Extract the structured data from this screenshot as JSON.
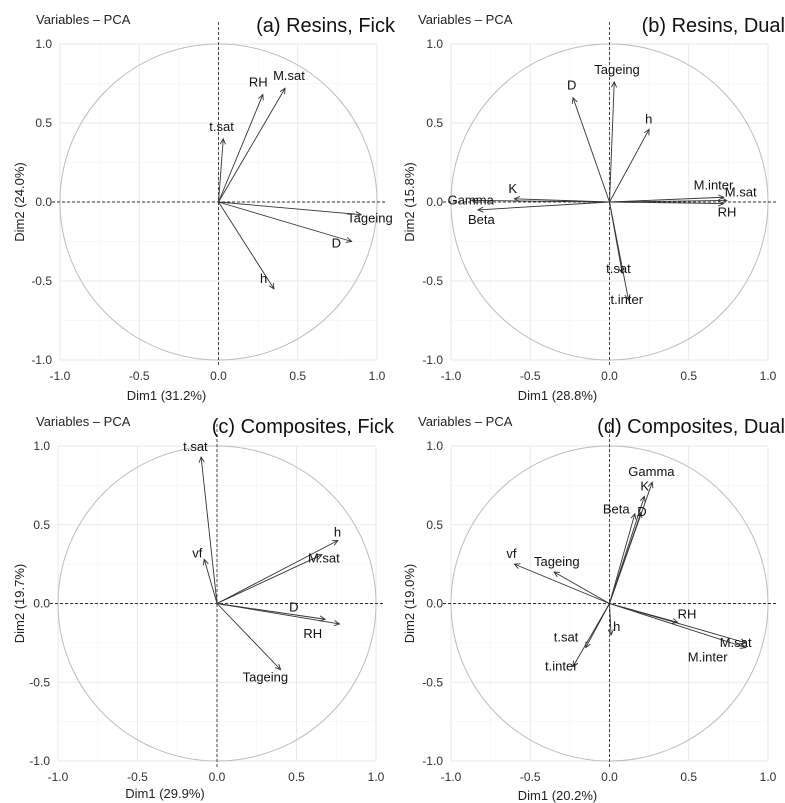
{
  "panels": [
    {
      "header": "Variables – PCA",
      "chart_data": {
        "type": "scatter",
        "title": "(a) Resins, Fick",
        "xlabel": "Dim1 (31.2%)",
        "ylabel": "Dim2 (24.0%)",
        "xlim": [
          -1.0,
          1.0
        ],
        "ylim": [
          -1.0,
          1.0
        ],
        "xticks": [
          "-1.0",
          "-0.5",
          "0.0",
          "0.5",
          "1.0"
        ],
        "yticks": [
          "-1.0",
          "-0.5",
          "0.0",
          "0.5",
          "1.0"
        ],
        "grid": true,
        "vectors": [
          {
            "label": "RH",
            "x": 0.28,
            "y": 0.68
          },
          {
            "label": "M.sat",
            "x": 0.42,
            "y": 0.72
          },
          {
            "label": "t.sat",
            "x": 0.03,
            "y": 0.4
          },
          {
            "label": "Tageing",
            "x": 0.9,
            "y": -0.08
          },
          {
            "label": "D",
            "x": 0.84,
            "y": -0.25
          },
          {
            "label": "h",
            "x": 0.35,
            "y": -0.55
          }
        ]
      }
    },
    {
      "header": "Variables – PCA",
      "chart_data": {
        "type": "scatter",
        "title": "(b) Resins, Dual",
        "xlabel": "Dim1 (28.8%)",
        "ylabel": "Dim2 (15.8%)",
        "xlim": [
          -1.0,
          1.0
        ],
        "ylim": [
          -1.0,
          1.0
        ],
        "xticks": [
          "-1.0",
          "-0.5",
          "0.0",
          "0.5",
          "1.0"
        ],
        "yticks": [
          "-1.0",
          "-0.5",
          "0.0",
          "0.5",
          "1.0"
        ],
        "grid": true,
        "vectors": [
          {
            "label": "Tageing",
            "x": 0.03,
            "y": 0.76
          },
          {
            "label": "D",
            "x": -0.23,
            "y": 0.66
          },
          {
            "label": "h",
            "x": 0.25,
            "y": 0.46
          },
          {
            "label": "K",
            "x": -0.6,
            "y": 0.02
          },
          {
            "label": "Gamma",
            "x": -0.87,
            "y": 0.01
          },
          {
            "label": "Beta",
            "x": -0.83,
            "y": -0.05
          },
          {
            "label": "M.inter",
            "x": 0.72,
            "y": 0.03
          },
          {
            "label": "M.sat",
            "x": 0.74,
            "y": 0.01
          },
          {
            "label": "RH",
            "x": 0.72,
            "y": -0.01
          },
          {
            "label": "t.sat",
            "x": 0.08,
            "y": -0.45
          },
          {
            "label": "t.inter",
            "x": 0.12,
            "y": -0.62
          }
        ]
      }
    },
    {
      "header": "Variables – PCA",
      "chart_data": {
        "type": "scatter",
        "title": "(c) Composites, Fick",
        "xlabel": "Dim1 (29.9%)",
        "ylabel": "Dim2 (19.7%)",
        "xlim": [
          -1.0,
          1.0
        ],
        "ylim": [
          -1.0,
          1.0
        ],
        "xticks": [
          "-1.0",
          "-0.5",
          "0.0",
          "0.5",
          "1.0"
        ],
        "yticks": [
          "-1.0",
          "-0.5",
          "0.0",
          "0.5",
          "1.0"
        ],
        "grid": true,
        "vectors": [
          {
            "label": "t.sat",
            "x": -0.1,
            "y": 0.93
          },
          {
            "label": "vf",
            "x": -0.08,
            "y": 0.28
          },
          {
            "label": "h",
            "x": 0.76,
            "y": 0.4
          },
          {
            "label": "M.sat",
            "x": 0.66,
            "y": 0.31
          },
          {
            "label": "D",
            "x": 0.68,
            "y": -0.1
          },
          {
            "label": "RH",
            "x": 0.77,
            "y": -0.13
          },
          {
            "label": "Tageing",
            "x": 0.4,
            "y": -0.42
          }
        ]
      }
    },
    {
      "header": "Variables – PCA",
      "chart_data": {
        "type": "scatter",
        "title": "(d) Composites, Dual",
        "xlabel": "Dim1 (20.2%)",
        "ylabel": "Dim2 (19.0%)",
        "xlim": [
          -1.0,
          1.0
        ],
        "ylim": [
          -1.0,
          1.0
        ],
        "xticks": [
          "-1.0",
          "-0.5",
          "0.0",
          "0.5",
          "1.0"
        ],
        "yticks": [
          "-1.0",
          "-0.5",
          "0.0",
          "0.5",
          "1.0"
        ],
        "grid": true,
        "vectors": [
          {
            "label": "Gamma",
            "x": 0.27,
            "y": 0.77
          },
          {
            "label": "K",
            "x": 0.22,
            "y": 0.68
          },
          {
            "label": "D",
            "x": 0.2,
            "y": 0.58
          },
          {
            "label": "Beta",
            "x": 0.16,
            "y": 0.57
          },
          {
            "label": "vf",
            "x": -0.6,
            "y": 0.25
          },
          {
            "label": "Tageing",
            "x": -0.35,
            "y": 0.2
          },
          {
            "label": "RH",
            "x": 0.43,
            "y": -0.12
          },
          {
            "label": "M.sat",
            "x": 0.86,
            "y": -0.25
          },
          {
            "label": "M.inter",
            "x": 0.86,
            "y": -0.28
          },
          {
            "label": "h",
            "x": 0.01,
            "y": -0.2
          },
          {
            "label": "t.sat",
            "x": -0.15,
            "y": -0.28
          },
          {
            "label": "t.inter",
            "x": -0.23,
            "y": -0.4
          }
        ]
      }
    }
  ]
}
